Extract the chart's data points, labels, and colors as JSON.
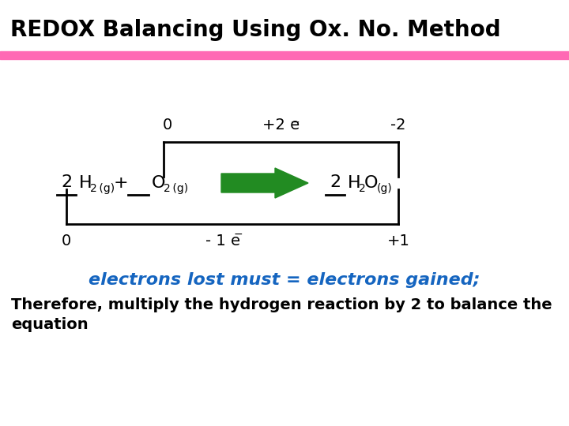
{
  "title": "REDOX Balancing Using Ox. No. Method",
  "title_fontsize": 20,
  "title_color": "#000000",
  "bg_color": "#ffffff",
  "pink_bar_color": "#FF69B4",
  "arrow_color": "#228B22",
  "blue_text_color": "#1565C0",
  "ox_no_top_label": "+2 e",
  "ox_no_top_left": "0",
  "ox_no_top_right": "-2",
  "ox_no_bot_label": "- 1 e",
  "ox_no_bot_left": "0",
  "ox_no_bot_right": "+1",
  "blue_line": "electrons lost must = electrons gained;",
  "black_line1": "Therefore, multiply the hydrogen reaction by 2 to balance the",
  "black_line2": "equation"
}
